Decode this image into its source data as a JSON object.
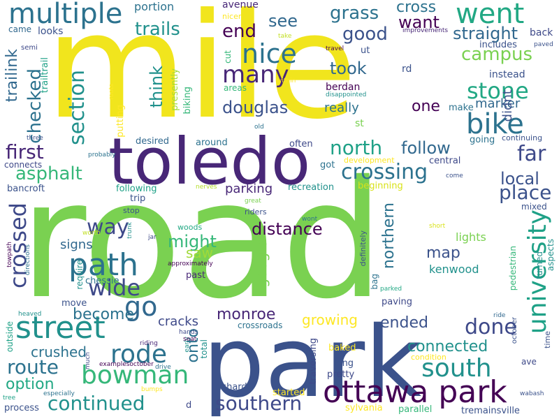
{
  "words": [
    {
      "text": "road",
      "color": "#7ad151"
    },
    {
      "text": "mile",
      "color": "#f1e51d"
    },
    {
      "text": "park",
      "color": "#3b528b"
    },
    {
      "text": "toledo",
      "color": "#482777"
    },
    {
      "text": "ottawa park",
      "color": "#440154"
    },
    {
      "text": "path",
      "color": "#2c728e"
    },
    {
      "text": "street",
      "color": "#21918c"
    },
    {
      "text": "multiple",
      "color": "#2c728e"
    },
    {
      "text": "nice",
      "color": "#2c728e"
    },
    {
      "text": "went",
      "color": "#22a884"
    },
    {
      "text": "bowman",
      "color": "#35b779"
    },
    {
      "text": "rode",
      "color": "#2c728e"
    },
    {
      "text": "bike",
      "color": "#2c728e"
    },
    {
      "text": "university",
      "color": "#1fa187"
    },
    {
      "text": "south",
      "color": "#21918c"
    },
    {
      "text": "continued",
      "color": "#21918c"
    },
    {
      "text": "southern",
      "color": "#3e4989"
    },
    {
      "text": "route",
      "color": "#2c728e"
    },
    {
      "text": "crossing",
      "color": "#2c728e"
    },
    {
      "text": "many",
      "color": "#482777"
    },
    {
      "text": "way",
      "color": "#3e4989"
    },
    {
      "text": "wide",
      "color": "#3e4989"
    },
    {
      "text": "go",
      "color": "#31688e"
    },
    {
      "text": "stone",
      "color": "#22a884"
    },
    {
      "text": "done",
      "color": "#3e4989"
    },
    {
      "text": "campus",
      "color": "#7ad151"
    },
    {
      "text": "trails",
      "color": "#21918c"
    },
    {
      "text": "grass",
      "color": "#2c728e"
    },
    {
      "text": "good",
      "color": "#3b528b"
    },
    {
      "text": "cross",
      "color": "#2c728e"
    },
    {
      "text": "end",
      "color": "#440154"
    },
    {
      "text": "douglas",
      "color": "#3b528b"
    },
    {
      "text": "crossed",
      "color": "#3e4989"
    },
    {
      "text": "section",
      "color": "#21918c"
    },
    {
      "text": "first",
      "color": "#482777"
    },
    {
      "text": "asphalt",
      "color": "#35b779"
    },
    {
      "text": "north",
      "color": "#1fa187"
    },
    {
      "text": "follow",
      "color": "#31688e"
    },
    {
      "text": "far",
      "color": "#3e4989"
    },
    {
      "text": "local",
      "color": "#3b528b"
    },
    {
      "text": "place",
      "color": "#3b528b"
    },
    {
      "text": "see",
      "color": "#31688e"
    },
    {
      "text": "want",
      "color": "#440154"
    },
    {
      "text": "straight",
      "color": "#31688e"
    },
    {
      "text": "took",
      "color": "#31688e"
    },
    {
      "text": "one",
      "color": "#440154"
    },
    {
      "text": "think",
      "color": "#21918c"
    },
    {
      "text": "checked",
      "color": "#2c728e"
    },
    {
      "text": "trailink",
      "color": "#31688e"
    },
    {
      "text": "distance",
      "color": "#440154"
    },
    {
      "text": "might",
      "color": "#35b779"
    },
    {
      "text": "saw",
      "color": "#a0da39"
    },
    {
      "text": "google",
      "color": "#7ad151"
    },
    {
      "text": "northern",
      "color": "#2c728e"
    },
    {
      "text": "map",
      "color": "#3b528b"
    },
    {
      "text": "monroe",
      "color": "#482777"
    },
    {
      "text": "become",
      "color": "#2c728e"
    },
    {
      "text": "cracks",
      "color": "#3e4989"
    },
    {
      "text": "onto",
      "color": "#2c728e"
    },
    {
      "text": "option",
      "color": "#22a884"
    },
    {
      "text": "crushed",
      "color": "#2c728e"
    },
    {
      "text": "connected",
      "color": "#21918c"
    },
    {
      "text": "ended",
      "color": "#3b528b"
    },
    {
      "text": "growing",
      "color": "#fde725"
    },
    {
      "text": "signs",
      "color": "#31688e"
    },
    {
      "text": "parking",
      "color": "#482777"
    },
    {
      "text": "really",
      "color": "#2c728e"
    },
    {
      "text": "marker",
      "color": "#31688e"
    },
    {
      "text": "didnt",
      "color": "#3b528b"
    },
    {
      "text": "lights",
      "color": "#7ad151"
    },
    {
      "text": "kenwood",
      "color": "#21918c"
    },
    {
      "text": "portion",
      "color": "#2c728e"
    },
    {
      "text": "avenue",
      "color": "#482777"
    },
    {
      "text": "nicer",
      "color": "#fde725"
    },
    {
      "text": "take",
      "color": "#c2df23"
    },
    {
      "text": "came",
      "color": "#31688e"
    },
    {
      "text": "looks",
      "color": "#3b528b"
    },
    {
      "text": "semi",
      "color": "#3e4989"
    },
    {
      "text": "trailtrail",
      "color": "#1fa187"
    },
    {
      "text": "cut",
      "color": "#35b779"
    },
    {
      "text": "areas",
      "color": "#35b779"
    },
    {
      "text": "within",
      "color": "#fde725"
    },
    {
      "text": "ut",
      "color": "#3b528b"
    },
    {
      "text": "rd",
      "color": "#3b528b"
    },
    {
      "text": "travel",
      "color": "#440154"
    },
    {
      "text": "improvements",
      "color": "#482777"
    },
    {
      "text": "back",
      "color": "#3e4989"
    },
    {
      "text": "includes",
      "color": "#3b528b"
    },
    {
      "text": "paved",
      "color": "#3b528b"
    },
    {
      "text": "instead",
      "color": "#3b528b"
    },
    {
      "text": "berdan",
      "color": "#440154"
    },
    {
      "text": "disappointed",
      "color": "#21918c"
    },
    {
      "text": "st",
      "color": "#7ad151"
    },
    {
      "text": "old",
      "color": "#2c728e"
    },
    {
      "text": "make",
      "color": "#2c728e"
    },
    {
      "text": "presently",
      "color": "#a0da39"
    },
    {
      "text": "biking",
      "color": "#35b779"
    },
    {
      "text": "putting",
      "color": "#fde725"
    },
    {
      "text": "roots",
      "color": "#fde725"
    },
    {
      "text": "three",
      "color": "#3b528b"
    },
    {
      "text": "probably",
      "color": "#2c728e"
    },
    {
      "text": "desired",
      "color": "#31688e"
    },
    {
      "text": "around",
      "color": "#2c728e"
    },
    {
      "text": "often",
      "color": "#3e4989"
    },
    {
      "text": "going",
      "color": "#2c728e"
    },
    {
      "text": "continuing",
      "color": "#3b528b"
    },
    {
      "text": "connects",
      "color": "#3e4989"
    },
    {
      "text": "development",
      "color": "#fde725"
    },
    {
      "text": "central",
      "color": "#3e4989"
    },
    {
      "text": "got",
      "color": "#2c728e"
    },
    {
      "text": "come",
      "color": "#3b528b"
    },
    {
      "text": "bancroft",
      "color": "#3b528b"
    },
    {
      "text": "following",
      "color": "#1fa187"
    },
    {
      "text": "nerves",
      "color": "#b5de2b"
    },
    {
      "text": "recreation",
      "color": "#21918c"
    },
    {
      "text": "beginning",
      "color": "#d8e219"
    },
    {
      "text": "mixed",
      "color": "#3b528b"
    },
    {
      "text": "trip",
      "color": "#3b528b"
    },
    {
      "text": "great",
      "color": "#7ad151"
    },
    {
      "text": "stop",
      "color": "#3b528b"
    },
    {
      "text": "riders",
      "color": "#3b528b"
    },
    {
      "text": "wont",
      "color": "#2c728e"
    },
    {
      "text": "short",
      "color": "#d8e219"
    },
    {
      "text": "woods",
      "color": "#22a884"
    },
    {
      "text": "worth",
      "color": "#c2df23"
    },
    {
      "text": "jar",
      "color": "#3e4989"
    },
    {
      "text": "trunk",
      "color": "#21918c"
    },
    {
      "text": "require",
      "color": "#21918c"
    },
    {
      "text": "chessie",
      "color": "#2c728e"
    },
    {
      "text": "approximately",
      "color": "#440154"
    },
    {
      "text": "bag",
      "color": "#2c728e"
    },
    {
      "text": "definitely",
      "color": "#3b528b"
    },
    {
      "text": "pedestrian",
      "color": "#35b779"
    },
    {
      "text": "turned",
      "color": "#21918c"
    },
    {
      "text": "aspects",
      "color": "#21918c"
    },
    {
      "text": "towpath",
      "color": "#440154"
    },
    {
      "text": "directions",
      "color": "#2c728e"
    },
    {
      "text": "past",
      "color": "#482777"
    },
    {
      "text": "parked",
      "color": "#22a884"
    },
    {
      "text": "move",
      "color": "#3b528b"
    },
    {
      "text": "paving",
      "color": "#3e4989"
    },
    {
      "text": "heaved",
      "color": "#21918c"
    },
    {
      "text": "hands",
      "color": "#3e4989"
    },
    {
      "text": "ride",
      "color": "#31688e"
    },
    {
      "text": "outside",
      "color": "#1fa187"
    },
    {
      "text": "early",
      "color": "#21918c"
    },
    {
      "text": "seat",
      "color": "#440154"
    },
    {
      "text": "crossroads",
      "color": "#2c728e"
    },
    {
      "text": "october",
      "color": "#3b528b"
    },
    {
      "text": "time",
      "color": "#3b528b"
    },
    {
      "text": "riding",
      "color": "#482777"
    },
    {
      "text": "total",
      "color": "#21918c"
    },
    {
      "text": "baked",
      "color": "#fde725"
    },
    {
      "text": "traversing",
      "color": "#3e4989"
    },
    {
      "text": "much",
      "color": "#3e4989"
    },
    {
      "text": "examplesoctober",
      "color": "#440154"
    },
    {
      "text": "drive",
      "color": "#2c728e"
    },
    {
      "text": "condition",
      "color": "#fde725"
    },
    {
      "text": "ave",
      "color": "#3e4989"
    },
    {
      "text": "long",
      "color": "#3b528b"
    },
    {
      "text": "pretty",
      "color": "#3e4989"
    },
    {
      "text": "bumps",
      "color": "#fde725"
    },
    {
      "text": "wabash",
      "color": "#3b528b"
    },
    {
      "text": "especially",
      "color": "#2c728e"
    },
    {
      "text": "richards",
      "color": "#3b528b"
    },
    {
      "text": "started",
      "color": "#fde725"
    },
    {
      "text": "tree",
      "color": "#1fa187"
    },
    {
      "text": "process",
      "color": "#3b528b"
    },
    {
      "text": "d",
      "color": "#3e4989"
    },
    {
      "text": "sylvania",
      "color": "#fde725"
    },
    {
      "text": "parallel",
      "color": "#35b779"
    },
    {
      "text": "tremainsville",
      "color": "#3b528b"
    }
  ]
}
